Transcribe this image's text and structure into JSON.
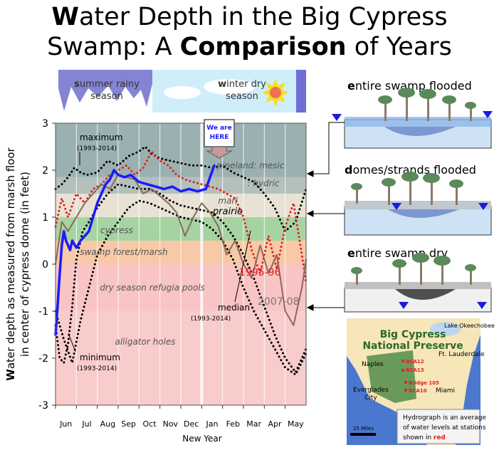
{
  "title": {
    "line1_initial": "W",
    "line1_rest": "ater Depth in the Big Cypress",
    "line2_a": "Swamp: A ",
    "line2_bold": "Comparison",
    "line2_b": " of Years"
  },
  "season_banner": {
    "summer_initial": "s",
    "summer_rest": "ummer rainy",
    "summer_line2": "season",
    "winter_initial": "w",
    "winter_rest": "inter dry",
    "winter_line2": "season"
  },
  "panels": [
    {
      "initial": "e",
      "rest": "ntire swamp flooded"
    },
    {
      "initial": "d",
      "rest": "omes/strands flooded"
    },
    {
      "initial": "e",
      "rest": "ntire swamp dry"
    }
  ],
  "here_marker": {
    "line1": "We are",
    "line2": "HERE"
  },
  "map": {
    "title_line1": "Big Cypress",
    "title_line2": "National Preserve",
    "lake": "Lake Okeechobee",
    "cities": [
      "Naples",
      "Ft. Lauderdale",
      "Everglades",
      "City",
      "Miami"
    ],
    "stations": [
      "BCA12",
      "BCA13",
      "Bridge 105",
      "BCA10"
    ],
    "scale": "25 Miles",
    "caption_line1": "Hydrograph is an average",
    "caption_line2": "of water levels at stations",
    "caption_line3": "shown in ",
    "caption_red": "red"
  },
  "chart_data": {
    "type": "line",
    "title": "Water Depth in the Big Cypress Swamp: A Comparison of Years",
    "ylabel_initial": "W",
    "ylabel_line1": "ater depth as measured from marsh floor",
    "ylabel_line2": "in center of cypress dome (in feet)",
    "xlabel": "New Year",
    "ylim": [
      -3,
      3
    ],
    "yticks": [
      "3",
      "2",
      "1",
      "0",
      "-1",
      "-2",
      "-3"
    ],
    "months": [
      "Jun",
      "Jul",
      "Aug",
      "Sep",
      "Oct",
      "Nov",
      "Dec",
      "Jan",
      "Feb",
      "Mar",
      "Apr",
      "May"
    ],
    "zones": [
      {
        "label": "pineland: mesic",
        "from": 1.85,
        "to": 3.0,
        "color": "#9bb0b0"
      },
      {
        "label": ": hydric",
        "from": 1.5,
        "to": 1.85,
        "color": "#b4c0bc"
      },
      {
        "label": "marl",
        "from": 1.25,
        "to": 1.5,
        "color": "#e8e2d4"
      },
      {
        "label": "prairie",
        "from": 1.0,
        "to": 1.25,
        "color": "#e8e2d4"
      },
      {
        "label": "cypress",
        "from": 0.5,
        "to": 1.0,
        "color": "#a6d3a2"
      },
      {
        "label": "swamp forest/marsh",
        "from": 0.0,
        "to": 0.5,
        "color": "#f7c9a6"
      },
      {
        "label": "dry season refugia pools",
        "from": -1.0,
        "to": 0.0,
        "color": "#f9c4c4"
      },
      {
        "label": "alligator holes",
        "from": -3.0,
        "to": -1.0,
        "color": "#f9cccc"
      }
    ],
    "series": [
      {
        "name": "maximum",
        "sublabel": "(1993-2014)",
        "style": "dotted",
        "color": "#000000",
        "x": [
          0,
          0.3,
          0.6,
          0.9,
          1.2,
          1.5,
          2.0,
          2.5,
          3.0,
          3.5,
          4.0,
          4.3,
          4.6,
          5.0,
          5.5,
          6.0,
          6.5,
          7.0,
          7.5,
          8.0,
          8.5,
          9.0,
          9.5,
          10.0,
          10.5,
          11.0,
          11.5,
          12.0
        ],
        "y": [
          1.6,
          1.7,
          1.85,
          2.05,
          1.95,
          1.9,
          1.95,
          2.2,
          2.1,
          2.3,
          2.4,
          2.5,
          2.35,
          2.25,
          2.2,
          2.15,
          2.1,
          2.1,
          2.05,
          2.1,
          1.95,
          1.85,
          1.75,
          1.5,
          1.2,
          0.7,
          0.9,
          1.6
        ]
      },
      {
        "name": "median",
        "sublabel": "(1993-2014)",
        "style": "dotted",
        "color": "#000000",
        "x": [
          0,
          0.2,
          0.4,
          0.6,
          0.8,
          1.0,
          1.3,
          1.6,
          2.0,
          2.5,
          3.0,
          3.5,
          4.0,
          4.5,
          5.0,
          5.5,
          6.0,
          6.5,
          7.0,
          7.5,
          8.0,
          8.5,
          9.0,
          9.5,
          10.0,
          10.5,
          11.0,
          11.5,
          12.0
        ],
        "y": [
          -1.3,
          -2.0,
          -2.1,
          -1.7,
          -0.9,
          0.1,
          0.7,
          0.9,
          1.2,
          1.5,
          1.7,
          1.65,
          1.6,
          1.6,
          1.5,
          1.35,
          1.25,
          1.2,
          1.15,
          1.1,
          0.9,
          0.6,
          0.2,
          -0.3,
          -0.9,
          -1.5,
          -2.0,
          -2.3,
          -1.8
        ]
      },
      {
        "name": "minimum",
        "sublabel": "(1993-2014)",
        "style": "dotted",
        "color": "#000000",
        "x": [
          0,
          0.4,
          0.8,
          1.2,
          1.6,
          2.0,
          2.5,
          3.0,
          3.5,
          4.0,
          4.5,
          5.0,
          5.5,
          6.0,
          6.5,
          7.0,
          7.5,
          8.0,
          8.5,
          9.0,
          9.5,
          10.0,
          10.5,
          11.0,
          11.5,
          12.0
        ],
        "y": [
          -1.0,
          -1.6,
          -2.1,
          -1.2,
          -0.5,
          0.2,
          0.6,
          0.9,
          1.2,
          1.35,
          1.3,
          1.2,
          1.1,
          1.0,
          0.95,
          0.9,
          0.75,
          0.5,
          0.1,
          -0.5,
          -1.0,
          -1.4,
          -1.8,
          -2.2,
          -2.35,
          -1.9
        ]
      },
      {
        "name": "1995-96",
        "style": "dotted",
        "color": "#e02020",
        "x": [
          0,
          0.3,
          0.6,
          1.0,
          1.4,
          1.8,
          2.2,
          2.6,
          3.0,
          3.4,
          3.8,
          4.2,
          4.6,
          5.0,
          5.4,
          5.8,
          6.2,
          6.6,
          7.0,
          7.4,
          7.8,
          8.2,
          8.6,
          9.0,
          9.4,
          9.8,
          10.2,
          10.6,
          11.0,
          11.4,
          11.8,
          12.0
        ],
        "y": [
          0.8,
          1.4,
          1.0,
          1.5,
          1.3,
          1.6,
          1.7,
          1.9,
          2.0,
          2.1,
          1.9,
          2.05,
          2.4,
          2.2,
          2.1,
          1.9,
          1.8,
          1.75,
          1.7,
          1.65,
          1.6,
          1.5,
          1.4,
          1.0,
          0.3,
          -0.2,
          0.6,
          -0.1,
          0.8,
          1.3,
          0.2,
          -0.4
        ]
      },
      {
        "name": "2007-08",
        "style": "solid",
        "color": "#8a6a5a",
        "x": [
          0,
          0.3,
          0.6,
          1.0,
          1.4,
          1.8,
          2.2,
          2.6,
          3.0,
          3.4,
          3.8,
          4.2,
          4.6,
          5.0,
          5.4,
          5.8,
          6.2,
          6.6,
          7.0,
          7.4,
          7.8,
          8.2,
          8.6,
          9.0,
          9.4,
          9.8,
          10.2,
          10.6,
          11.0,
          11.4,
          11.8,
          12.0
        ],
        "y": [
          0.0,
          0.9,
          0.7,
          1.0,
          1.3,
          1.5,
          1.7,
          1.6,
          1.9,
          1.85,
          1.8,
          1.5,
          1.6,
          1.45,
          1.3,
          1.1,
          0.6,
          1.0,
          1.3,
          1.1,
          0.8,
          0.2,
          0.5,
          0.0,
          -0.3,
          0.4,
          -0.2,
          0.2,
          -1.0,
          -1.3,
          -0.5,
          0.1
        ]
      },
      {
        "name": "current",
        "style": "solid",
        "color": "#1a1aff",
        "x": [
          0,
          0.1,
          0.2,
          0.3,
          0.4,
          0.5,
          0.6,
          0.7,
          0.8,
          1.0,
          1.2,
          1.4,
          1.6,
          1.8,
          2.0,
          2.2,
          2.4,
          2.6,
          2.8,
          3.0,
          3.3,
          3.6,
          4.0,
          4.4,
          4.8,
          5.2,
          5.6,
          6.0,
          6.4,
          6.8,
          7.2,
          7.4,
          7.6
        ],
        "y": [
          -1.5,
          -0.9,
          -0.2,
          0.4,
          0.7,
          0.5,
          0.4,
          0.3,
          0.5,
          0.35,
          0.5,
          0.6,
          0.7,
          1.0,
          1.3,
          1.5,
          1.7,
          1.8,
          2.0,
          1.9,
          1.85,
          1.9,
          1.75,
          1.7,
          1.65,
          1.6,
          1.65,
          1.55,
          1.6,
          1.55,
          1.6,
          1.85,
          2.1
        ]
      }
    ]
  }
}
